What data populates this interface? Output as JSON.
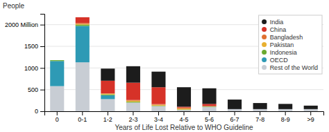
{
  "chart_data": {
    "type": "bar",
    "stacked": true,
    "xlabel": "Years of Life Lost Relative to WHO Guideline",
    "ylabel": "People",
    "categories": [
      "0",
      "0-1",
      "1-2",
      "2-3",
      "3-4",
      "4-5",
      "5-6",
      "6-7",
      "7-8",
      "8-9",
      ">9"
    ],
    "series": [
      {
        "name": "Rest of the World",
        "color": "#c8cdd4",
        "values": [
          580,
          1130,
          280,
          200,
          120,
          30,
          100,
          50,
          50,
          50,
          50
        ]
      },
      {
        "name": "OECD",
        "color": "#2e9ab5",
        "values": [
          580,
          840,
          90,
          0,
          0,
          0,
          0,
          0,
          0,
          0,
          0
        ]
      },
      {
        "name": "Indonesia",
        "color": "#6aaa30",
        "values": [
          20,
          30,
          20,
          20,
          10,
          10,
          10,
          0,
          0,
          0,
          0
        ]
      },
      {
        "name": "Pakistan",
        "color": "#e8b030",
        "values": [
          0,
          15,
          15,
          25,
          20,
          20,
          5,
          0,
          0,
          0,
          0
        ]
      },
      {
        "name": "Bangladesh",
        "color": "#e07030",
        "values": [
          0,
          25,
          10,
          15,
          15,
          25,
          5,
          0,
          0,
          0,
          0
        ]
      },
      {
        "name": "China",
        "color": "#d63228",
        "values": [
          0,
          130,
          290,
          400,
          390,
          20,
          50,
          0,
          0,
          0,
          0
        ]
      },
      {
        "name": "India",
        "color": "#1c1c1c",
        "values": [
          0,
          0,
          280,
          380,
          360,
          450,
          360,
          220,
          140,
          120,
          80
        ]
      }
    ],
    "ylim": [
      0,
      2250
    ],
    "yticks": [
      0,
      500,
      1000,
      1500,
      {
        "value": 2000,
        "label": "2000 Million"
      }
    ],
    "grid": true,
    "legend": "top-right"
  }
}
